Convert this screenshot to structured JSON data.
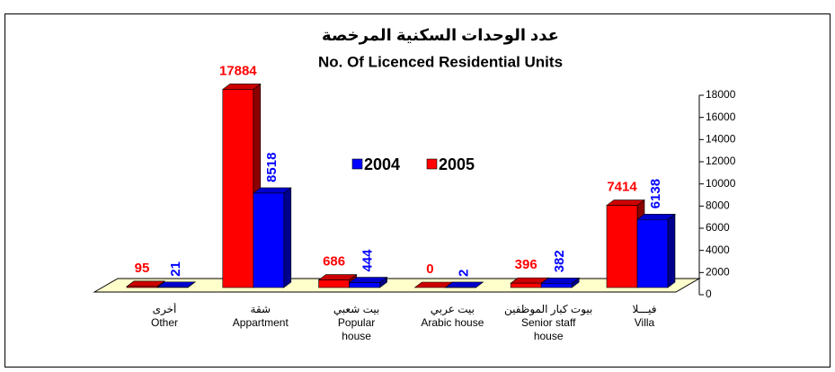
{
  "chart_data": {
    "type": "bar3d",
    "title": "عدد الوحدات السكنية المرخصة",
    "subtitle": "No. Of Licenced Residential Units",
    "categories": [
      "Other",
      "Appartment",
      "Popular house",
      "Arabic house",
      "Senior staff house",
      "Villa"
    ],
    "categories_ar": [
      "أخرى",
      "شقة",
      "بيت شعبي",
      "بيت عربي",
      "بيوت كبار الموظفين",
      "فيـــلا"
    ],
    "series": [
      {
        "name": "2004",
        "color": "#0000ff",
        "values": [
          21,
          8518,
          444,
          2,
          382,
          6138
        ]
      },
      {
        "name": "2005",
        "color": "#ff0000",
        "values": [
          95,
          17884,
          686,
          0,
          396,
          7414
        ]
      }
    ],
    "ylim": [
      0,
      18000
    ],
    "yticks": [
      0,
      2000,
      4000,
      6000,
      8000,
      10000,
      12000,
      14000,
      16000,
      18000
    ],
    "yaxis_side": "right",
    "grid": false
  }
}
